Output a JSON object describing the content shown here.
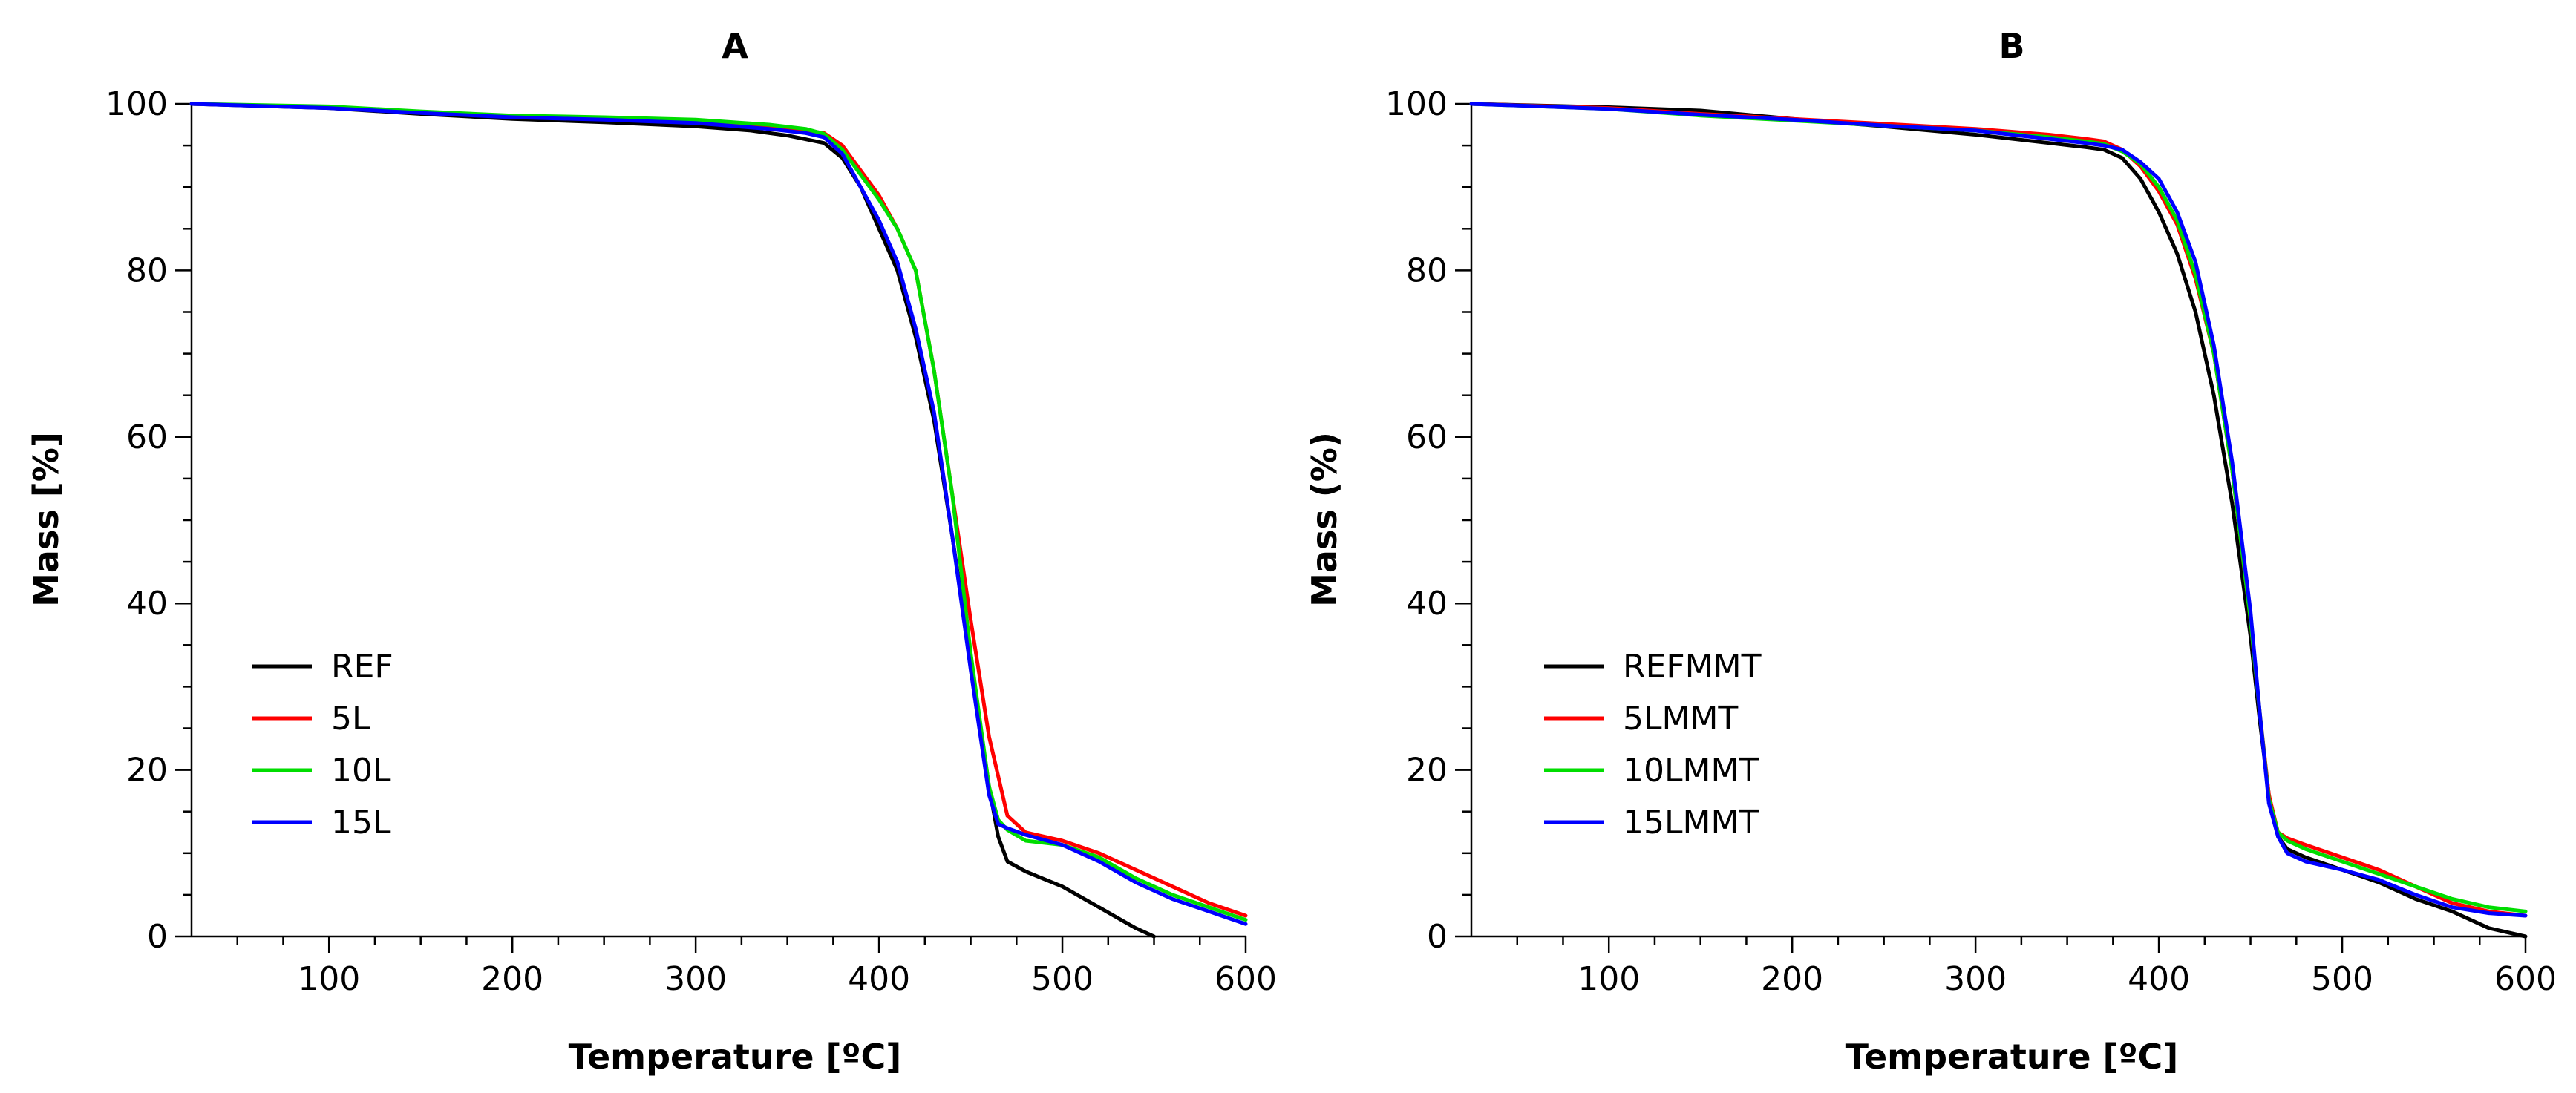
{
  "chart_data": [
    {
      "type": "line",
      "title": "A",
      "xlabel": "Temperature [ºC]",
      "ylabel": "Mass [%]",
      "xlim": [
        25,
        600
      ],
      "ylim": [
        0,
        100
      ],
      "x_ticks": [
        100,
        200,
        300,
        400,
        500,
        600
      ],
      "y_ticks": [
        0,
        20,
        40,
        60,
        80,
        100
      ],
      "legend_position": "lower-left",
      "series": [
        {
          "name": "REF",
          "color": "#000000",
          "points": [
            [
              25,
              100
            ],
            [
              100,
              99.5
            ],
            [
              150,
              98.8
            ],
            [
              200,
              98.2
            ],
            [
              250,
              97.8
            ],
            [
              300,
              97.3
            ],
            [
              330,
              96.8
            ],
            [
              350,
              96.2
            ],
            [
              370,
              95.3
            ],
            [
              380,
              93.5
            ],
            [
              390,
              90
            ],
            [
              400,
              85
            ],
            [
              410,
              80
            ],
            [
              420,
              72
            ],
            [
              430,
              62
            ],
            [
              440,
              48
            ],
            [
              450,
              33
            ],
            [
              460,
              18
            ],
            [
              465,
              12
            ],
            [
              470,
              9
            ],
            [
              480,
              7.8
            ],
            [
              500,
              6
            ],
            [
              520,
              3.5
            ],
            [
              540,
              1
            ],
            [
              550,
              0
            ]
          ]
        },
        {
          "name": "5L",
          "color": "#ff0000",
          "points": [
            [
              25,
              100
            ],
            [
              100,
              99.6
            ],
            [
              150,
              99
            ],
            [
              200,
              98.5
            ],
            [
              250,
              98.2
            ],
            [
              300,
              97.8
            ],
            [
              340,
              97.2
            ],
            [
              360,
              96.8
            ],
            [
              370,
              96.5
            ],
            [
              380,
              95
            ],
            [
              390,
              92
            ],
            [
              400,
              89
            ],
            [
              410,
              85
            ],
            [
              420,
              80
            ],
            [
              430,
              68
            ],
            [
              440,
              53
            ],
            [
              450,
              38
            ],
            [
              460,
              24
            ],
            [
              470,
              14.5
            ],
            [
              480,
              12.5
            ],
            [
              500,
              11.5
            ],
            [
              520,
              10
            ],
            [
              540,
              8
            ],
            [
              560,
              6
            ],
            [
              580,
              4
            ],
            [
              600,
              2.5
            ]
          ]
        },
        {
          "name": "10L",
          "color": "#00dd00",
          "points": [
            [
              25,
              100
            ],
            [
              100,
              99.7
            ],
            [
              150,
              99.1
            ],
            [
              200,
              98.6
            ],
            [
              250,
              98.4
            ],
            [
              300,
              98.1
            ],
            [
              340,
              97.5
            ],
            [
              360,
              97
            ],
            [
              370,
              96.4
            ],
            [
              380,
              94.5
            ],
            [
              390,
              91.5
            ],
            [
              400,
              88.5
            ],
            [
              410,
              85
            ],
            [
              420,
              80
            ],
            [
              430,
              68
            ],
            [
              440,
              53
            ],
            [
              450,
              34
            ],
            [
              460,
              18
            ],
            [
              465,
              14
            ],
            [
              470,
              12.8
            ],
            [
              480,
              11.5
            ],
            [
              500,
              11
            ],
            [
              520,
              9.5
            ],
            [
              540,
              7
            ],
            [
              560,
              5
            ],
            [
              580,
              3.5
            ],
            [
              600,
              2
            ]
          ]
        },
        {
          "name": "15L",
          "color": "#0000ff",
          "points": [
            [
              25,
              100
            ],
            [
              100,
              99.5
            ],
            [
              150,
              98.9
            ],
            [
              200,
              98.4
            ],
            [
              250,
              98.1
            ],
            [
              300,
              97.7
            ],
            [
              340,
              97
            ],
            [
              360,
              96.5
            ],
            [
              370,
              96
            ],
            [
              380,
              94
            ],
            [
              390,
              90
            ],
            [
              400,
              86
            ],
            [
              410,
              81
            ],
            [
              420,
              73
            ],
            [
              430,
              63
            ],
            [
              440,
              48
            ],
            [
              450,
              32
            ],
            [
              460,
              17
            ],
            [
              465,
              13.5
            ],
            [
              470,
              13
            ],
            [
              480,
              12.2
            ],
            [
              500,
              11
            ],
            [
              520,
              9
            ],
            [
              540,
              6.5
            ],
            [
              560,
              4.5
            ],
            [
              580,
              3
            ],
            [
              600,
              1.5
            ]
          ]
        }
      ]
    },
    {
      "type": "line",
      "title": "B",
      "xlabel": "Temperature [ºC]",
      "ylabel": "Mass (%)",
      "xlim": [
        25,
        600
      ],
      "ylim": [
        0,
        100
      ],
      "x_ticks": [
        100,
        200,
        300,
        400,
        500,
        600
      ],
      "y_ticks": [
        0,
        20,
        40,
        60,
        80,
        100
      ],
      "legend_position": "lower-left",
      "series": [
        {
          "name": "REFMMT",
          "color": "#000000",
          "points": [
            [
              25,
              100
            ],
            [
              100,
              99.6
            ],
            [
              150,
              99.2
            ],
            [
              200,
              98.2
            ],
            [
              250,
              97.3
            ],
            [
              300,
              96.3
            ],
            [
              340,
              95.3
            ],
            [
              360,
              94.8
            ],
            [
              370,
              94.5
            ],
            [
              380,
              93.5
            ],
            [
              390,
              91
            ],
            [
              400,
              87
            ],
            [
              410,
              82
            ],
            [
              420,
              75
            ],
            [
              430,
              65
            ],
            [
              440,
              52
            ],
            [
              450,
              36
            ],
            [
              455,
              26
            ],
            [
              460,
              17
            ],
            [
              465,
              12
            ],
            [
              470,
              10.5
            ],
            [
              480,
              9.5
            ],
            [
              500,
              8
            ],
            [
              520,
              6.5
            ],
            [
              540,
              4.5
            ],
            [
              560,
              3
            ],
            [
              580,
              1
            ],
            [
              600,
              0
            ]
          ]
        },
        {
          "name": "5LMMT",
          "color": "#ff0000",
          "points": [
            [
              25,
              100
            ],
            [
              100,
              99.5
            ],
            [
              150,
              98.8
            ],
            [
              200,
              98.2
            ],
            [
              250,
              97.6
            ],
            [
              300,
              97
            ],
            [
              340,
              96.3
            ],
            [
              360,
              95.8
            ],
            [
              370,
              95.5
            ],
            [
              380,
              94.5
            ],
            [
              390,
              92.5
            ],
            [
              400,
              89.5
            ],
            [
              410,
              85.5
            ],
            [
              420,
              79
            ],
            [
              430,
              70
            ],
            [
              440,
              56
            ],
            [
              450,
              38
            ],
            [
              455,
              27
            ],
            [
              460,
              17
            ],
            [
              465,
              12.5
            ],
            [
              470,
              11.8
            ],
            [
              480,
              11
            ],
            [
              500,
              9.5
            ],
            [
              520,
              8
            ],
            [
              540,
              6
            ],
            [
              560,
              4
            ],
            [
              580,
              3
            ],
            [
              600,
              2.5
            ]
          ]
        },
        {
          "name": "10LMMT",
          "color": "#00dd00",
          "points": [
            [
              25,
              100
            ],
            [
              100,
              99.4
            ],
            [
              150,
              98.6
            ],
            [
              200,
              98
            ],
            [
              250,
              97.4
            ],
            [
              300,
              96.8
            ],
            [
              340,
              96
            ],
            [
              360,
              95.5
            ],
            [
              370,
              95.2
            ],
            [
              380,
              94.3
            ],
            [
              390,
              92.8
            ],
            [
              400,
              90
            ],
            [
              410,
              86
            ],
            [
              420,
              79.5
            ],
            [
              430,
              70
            ],
            [
              440,
              56
            ],
            [
              450,
              38
            ],
            [
              455,
              27
            ],
            [
              460,
              16.5
            ],
            [
              465,
              12.5
            ],
            [
              470,
              11.5
            ],
            [
              480,
              10.5
            ],
            [
              500,
              9
            ],
            [
              520,
              7.5
            ],
            [
              540,
              6
            ],
            [
              560,
              4.5
            ],
            [
              580,
              3.5
            ],
            [
              600,
              3
            ]
          ]
        },
        {
          "name": "15LMMT",
          "color": "#0000ff",
          "points": [
            [
              25,
              100
            ],
            [
              100,
              99.4
            ],
            [
              150,
              98.7
            ],
            [
              200,
              98.1
            ],
            [
              250,
              97.4
            ],
            [
              300,
              96.8
            ],
            [
              340,
              95.8
            ],
            [
              360,
              95.3
            ],
            [
              370,
              95
            ],
            [
              380,
              94.5
            ],
            [
              390,
              93
            ],
            [
              400,
              91
            ],
            [
              410,
              87
            ],
            [
              420,
              81
            ],
            [
              430,
              71
            ],
            [
              440,
              57
            ],
            [
              450,
              39
            ],
            [
              455,
              27
            ],
            [
              460,
              16
            ],
            [
              465,
              12
            ],
            [
              470,
              10
            ],
            [
              480,
              9
            ],
            [
              500,
              8
            ],
            [
              520,
              6.8
            ],
            [
              540,
              5
            ],
            [
              560,
              3.5
            ],
            [
              580,
              2.8
            ],
            [
              600,
              2.5
            ]
          ]
        }
      ]
    }
  ]
}
